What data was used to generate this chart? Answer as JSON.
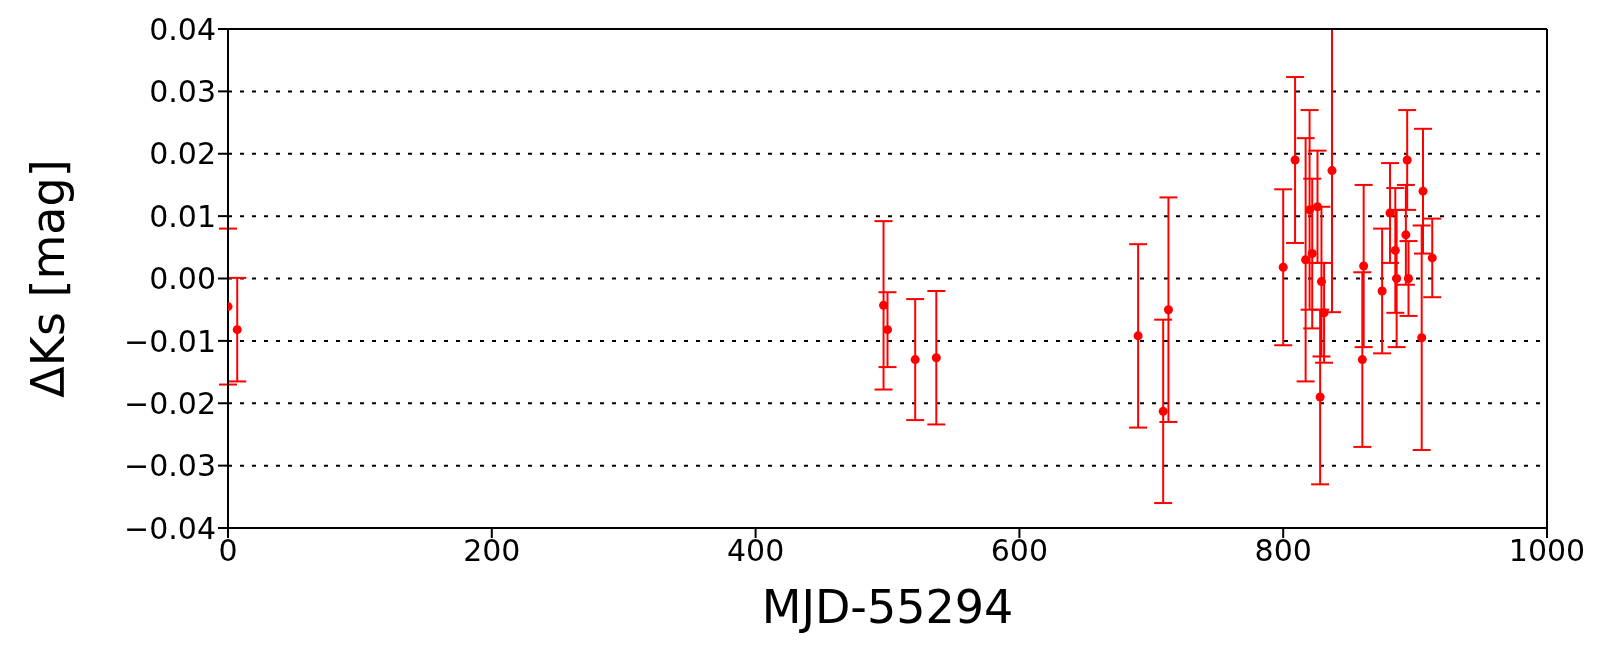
{
  "chart_data": {
    "type": "scatter",
    "xlabel": "MJD-55294",
    "ylabel": "ΔKs [mag]",
    "x": [
      0,
      7,
      497,
      500,
      521,
      537,
      690,
      709,
      713,
      800,
      809,
      817,
      820,
      822,
      826,
      828,
      829,
      831,
      837,
      860,
      861,
      875,
      881,
      885,
      886,
      893,
      894,
      895,
      905,
      906,
      913
    ],
    "series": [
      {
        "color": "#ff0000",
        "values": [
          -0.0045,
          -0.0082,
          -0.0043,
          -0.0082,
          -0.013,
          -0.0127,
          -0.0092,
          -0.0213,
          -0.005,
          0.0018,
          0.019,
          0.003,
          0.011,
          0.004,
          0.0115,
          -0.019,
          -0.0005,
          -0.0055,
          0.0173,
          -0.013,
          0.002,
          -0.002,
          0.0105,
          0.0045,
          0.0,
          0.007,
          0.019,
          0.0,
          -0.0095,
          0.014,
          0.0033
        ],
        "errors": [
          0.0125,
          0.0083,
          0.0135,
          0.006,
          0.0097,
          0.0107,
          0.0147,
          0.0147,
          0.018,
          0.0125,
          0.0133,
          0.0195,
          0.016,
          0.012,
          0.009,
          0.014,
          0.012,
          0.008,
          0.0227,
          0.014,
          0.013,
          0.01,
          0.008,
          0.01,
          0.011,
          0.008,
          0.008,
          0.006,
          0.018,
          0.01,
          0.0063
        ]
      }
    ],
    "xlim": [
      0,
      1000
    ],
    "xticks": [
      0,
      200,
      400,
      600,
      800,
      1000
    ],
    "ylim": [
      -0.04,
      0.04
    ],
    "yticks": [
      {
        "value": -0.04,
        "label": "−0.04"
      },
      {
        "value": -0.03,
        "label": "−0.03"
      },
      {
        "value": -0.02,
        "label": "−0.02"
      },
      {
        "value": -0.01,
        "label": "−0.01"
      },
      {
        "value": 0,
        "label": "0.00"
      },
      {
        "value": 0.01,
        "label": "0.01"
      },
      {
        "value": 0.02,
        "label": "0.02"
      },
      {
        "value": 0.03,
        "label": "0.03"
      },
      {
        "value": 0.04,
        "label": "0.04"
      }
    ],
    "grid": "y",
    "marker": "circle"
  }
}
